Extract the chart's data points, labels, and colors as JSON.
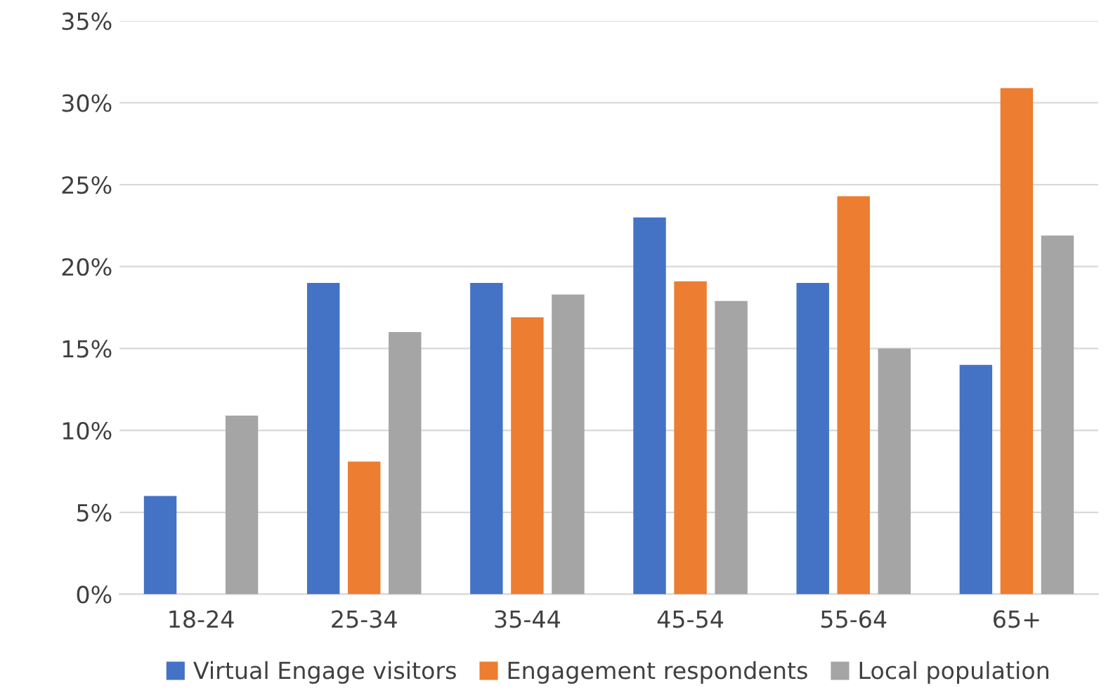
{
  "chart_data": {
    "type": "bar",
    "categories": [
      "18-24",
      "25-34",
      "35-44",
      "45-54",
      "55-64",
      "65+"
    ],
    "series": [
      {
        "name": "Virtual Engage visitors",
        "color": "#4472c4",
        "values": [
          6,
          19,
          19,
          23,
          19,
          14
        ]
      },
      {
        "name": "Engagement respondents",
        "color": "#ed7d31",
        "values": [
          0,
          8.1,
          16.9,
          19.1,
          24.3,
          30.9
        ]
      },
      {
        "name": "Local population",
        "color": "#a5a5a5",
        "values": [
          10.9,
          16,
          18.3,
          17.9,
          15,
          21.9
        ]
      }
    ],
    "ylim": [
      0,
      35
    ],
    "yticks": [
      {
        "value": 0,
        "label": "0%"
      },
      {
        "value": 5,
        "label": "5%"
      },
      {
        "value": 10,
        "label": "10%"
      },
      {
        "value": 15,
        "label": "15%"
      },
      {
        "value": 20,
        "label": "20%"
      },
      {
        "value": 25,
        "label": "25%"
      },
      {
        "value": 30,
        "label": "30%"
      },
      {
        "value": 35,
        "label": "35%"
      }
    ],
    "grid": "y",
    "legend": "bottom"
  }
}
